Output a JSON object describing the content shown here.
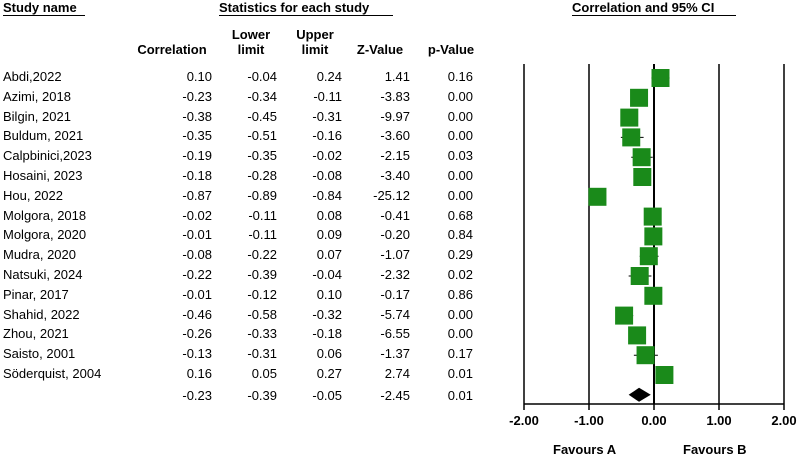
{
  "headers": {
    "study_name": "Study name",
    "stats": "Statistics for each study",
    "ci": "Correlation and 95% CI",
    "columns": {
      "correlation": "Correlation",
      "lower": [
        "Lower",
        "limit"
      ],
      "upper": [
        "Upper",
        "limit"
      ],
      "z": "Z-Value",
      "p": "p-Value"
    }
  },
  "rows": [
    {
      "study": "Abdi,2022",
      "corr": "0.10",
      "lower": "-0.04",
      "upper": "0.24",
      "z": "1.41",
      "p": "0.16"
    },
    {
      "study": "Azimi, 2018",
      "corr": "-0.23",
      "lower": "-0.34",
      "upper": "-0.11",
      "z": "-3.83",
      "p": "0.00"
    },
    {
      "study": "Bilgin, 2021",
      "corr": "-0.38",
      "lower": "-0.45",
      "upper": "-0.31",
      "z": "-9.97",
      "p": "0.00"
    },
    {
      "study": "Buldum, 2021",
      "corr": "-0.35",
      "lower": "-0.51",
      "upper": "-0.16",
      "z": "-3.60",
      "p": "0.00"
    },
    {
      "study": "Calpbinici,2023",
      "corr": "-0.19",
      "lower": "-0.35",
      "upper": "-0.02",
      "z": "-2.15",
      "p": "0.03"
    },
    {
      "study": "Hosaini, 2023",
      "corr": "-0.18",
      "lower": "-0.28",
      "upper": "-0.08",
      "z": "-3.40",
      "p": "0.00"
    },
    {
      "study": "Hou, 2022",
      "corr": "-0.87",
      "lower": "-0.89",
      "upper": "-0.84",
      "z": "-25.12",
      "p": "0.00"
    },
    {
      "study": "Molgora, 2018",
      "corr": "-0.02",
      "lower": "-0.11",
      "upper": "0.08",
      "z": "-0.41",
      "p": "0.68"
    },
    {
      "study": "Molgora, 2020",
      "corr": "-0.01",
      "lower": "-0.11",
      "upper": "0.09",
      "z": "-0.20",
      "p": "0.84"
    },
    {
      "study": "Mudra, 2020",
      "corr": "-0.08",
      "lower": "-0.22",
      "upper": "0.07",
      "z": "-1.07",
      "p": "0.29"
    },
    {
      "study": "Natsuki, 2024",
      "corr": "-0.22",
      "lower": "-0.39",
      "upper": "-0.04",
      "z": "-2.32",
      "p": "0.02"
    },
    {
      "study": "Pinar, 2017",
      "corr": "-0.01",
      "lower": "-0.12",
      "upper": "0.10",
      "z": "-0.17",
      "p": "0.86"
    },
    {
      "study": "Shahid, 2022",
      "corr": "-0.46",
      "lower": "-0.58",
      "upper": "-0.32",
      "z": "-5.74",
      "p": "0.00"
    },
    {
      "study": "Zhou, 2021",
      "corr": "-0.26",
      "lower": "-0.33",
      "upper": "-0.18",
      "z": "-6.55",
      "p": "0.00"
    },
    {
      "study": "Saisto, 2001",
      "corr": "-0.13",
      "lower": "-0.31",
      "upper": "0.06",
      "z": "-1.37",
      "p": "0.17"
    },
    {
      "study": "Söderquist, 2004",
      "corr": "0.16",
      "lower": "0.05",
      "upper": "0.27",
      "z": "2.74",
      "p": "0.01"
    }
  ],
  "summary": {
    "corr": "-0.23",
    "lower": "-0.39",
    "upper": "-0.05",
    "z": "-2.45",
    "p": "0.01"
  },
  "favours": {
    "left": "Favours A",
    "right": "Favours B"
  },
  "colors": {
    "marker": "#1a8a1a",
    "summary": "#000000"
  },
  "chart_data": {
    "type": "forest",
    "title": "Correlation and 95% CI",
    "xlim": [
      -2,
      2
    ],
    "ticks": [
      "-2.00",
      "-1.00",
      "0.00",
      "1.00",
      "2.00"
    ],
    "tick_values": [
      -2,
      -1,
      0,
      1,
      2
    ],
    "points": [
      {
        "name": "Abdi,2022",
        "value": 0.1,
        "ci": [
          -0.04,
          0.24
        ]
      },
      {
        "name": "Azimi, 2018",
        "value": -0.23,
        "ci": [
          -0.34,
          -0.11
        ]
      },
      {
        "name": "Bilgin, 2021",
        "value": -0.38,
        "ci": [
          -0.45,
          -0.31
        ]
      },
      {
        "name": "Buldum, 2021",
        "value": -0.35,
        "ci": [
          -0.51,
          -0.16
        ]
      },
      {
        "name": "Calpbinici,2023",
        "value": -0.19,
        "ci": [
          -0.35,
          -0.02
        ]
      },
      {
        "name": "Hosaini, 2023",
        "value": -0.18,
        "ci": [
          -0.28,
          -0.08
        ]
      },
      {
        "name": "Hou, 2022",
        "value": -0.87,
        "ci": [
          -0.89,
          -0.84
        ]
      },
      {
        "name": "Molgora, 2018",
        "value": -0.02,
        "ci": [
          -0.11,
          0.08
        ]
      },
      {
        "name": "Molgora, 2020",
        "value": -0.01,
        "ci": [
          -0.11,
          0.09
        ]
      },
      {
        "name": "Mudra, 2020",
        "value": -0.08,
        "ci": [
          -0.22,
          0.07
        ]
      },
      {
        "name": "Natsuki, 2024",
        "value": -0.22,
        "ci": [
          -0.39,
          -0.04
        ]
      },
      {
        "name": "Pinar, 2017",
        "value": -0.01,
        "ci": [
          -0.12,
          0.1
        ]
      },
      {
        "name": "Shahid, 2022",
        "value": -0.46,
        "ci": [
          -0.58,
          -0.32
        ]
      },
      {
        "name": "Zhou, 2021",
        "value": -0.26,
        "ci": [
          -0.33,
          -0.18
        ]
      },
      {
        "name": "Saisto, 2001",
        "value": -0.13,
        "ci": [
          -0.31,
          0.06
        ]
      },
      {
        "name": "Söderquist, 2004",
        "value": 0.16,
        "ci": [
          0.05,
          0.27
        ]
      }
    ],
    "summary": {
      "value": -0.23,
      "ci": [
        -0.39,
        -0.05
      ]
    }
  }
}
